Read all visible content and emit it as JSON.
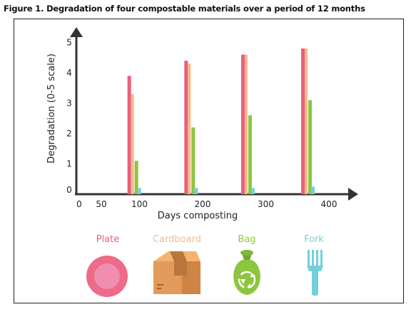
{
  "figure_title": "Figure 1. Degradation of four compostable materials over a period of 12 months",
  "chart_data": {
    "type": "bar",
    "title": "Figure 1. Degradation of four compostable materials over a period of 12 months",
    "xlabel": "Days composting",
    "ylabel": "Degradation (0-5 scale)",
    "x_ticks": [
      0,
      50,
      100,
      200,
      300,
      400
    ],
    "y_ticks": [
      0,
      1,
      2,
      3,
      4,
      5
    ],
    "xlim": [
      0,
      420
    ],
    "ylim": [
      0,
      5.3
    ],
    "categories": [
      90,
      180,
      270,
      365
    ],
    "series": [
      {
        "name": "Plate",
        "color": "#e8607a",
        "values": [
          3.9,
          4.4,
          4.6,
          4.8
        ]
      },
      {
        "name": "Cardboard",
        "color": "#f6b98a",
        "values": [
          3.3,
          4.3,
          4.6,
          4.8
        ]
      },
      {
        "name": "Bag",
        "color": "#8cc63f",
        "values": [
          1.1,
          2.2,
          2.6,
          3.1
        ]
      },
      {
        "name": "Fork",
        "color": "#74cfdb",
        "values": [
          0.2,
          0.2,
          0.2,
          0.25
        ]
      }
    ],
    "grid": false,
    "legend_position": "bottom"
  },
  "legend": [
    {
      "label": "Plate",
      "icon": "plate-icon",
      "color": "#e8607a"
    },
    {
      "label": "Cardboard",
      "icon": "cardboard-box-icon",
      "color": "#f6b98a"
    },
    {
      "label": "Bag",
      "icon": "compost-bag-icon",
      "color": "#8cc63f"
    },
    {
      "label": "Fork",
      "icon": "fork-icon",
      "color": "#74cfdb"
    }
  ]
}
